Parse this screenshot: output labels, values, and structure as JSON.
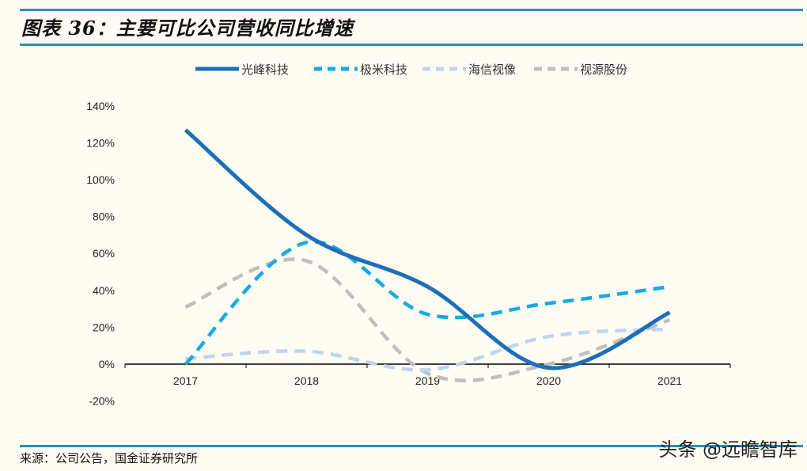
{
  "title": "图表 36：主要可比公司营收同比增速",
  "source": "来源：公司公告，国金证券研究所",
  "watermark": "头条 @远瞻智库",
  "chart_data": {
    "type": "line",
    "title": "",
    "xlabel": "",
    "ylabel": "",
    "categories": [
      "2017",
      "2018",
      "2019",
      "2020",
      "2021"
    ],
    "ylim": [
      -20,
      140
    ],
    "yticks": [
      "140%",
      "120%",
      "100%",
      "80%",
      "60%",
      "40%",
      "20%",
      "0%",
      "-20%"
    ],
    "ytick_values": [
      140,
      120,
      100,
      80,
      60,
      40,
      20,
      0,
      -20
    ],
    "grid": false,
    "legend": "top",
    "series": [
      {
        "name": "光峰科技",
        "values": [
          127,
          70,
          42,
          -2,
          28
        ],
        "color": "#1c6fb8",
        "dash": "solid"
      },
      {
        "name": "极米科技",
        "values": [
          0,
          66,
          27,
          33,
          42
        ],
        "color": "#19a9e1",
        "dash": "dashed"
      },
      {
        "name": "海信视像",
        "values": [
          3,
          7,
          -3,
          15,
          19
        ],
        "color": "#bcd6ee",
        "dash": "dashed"
      },
      {
        "name": "视源股份",
        "values": [
          31,
          56,
          -5,
          0,
          24
        ],
        "color": "#bfbfbf",
        "dash": "dashed"
      }
    ]
  }
}
